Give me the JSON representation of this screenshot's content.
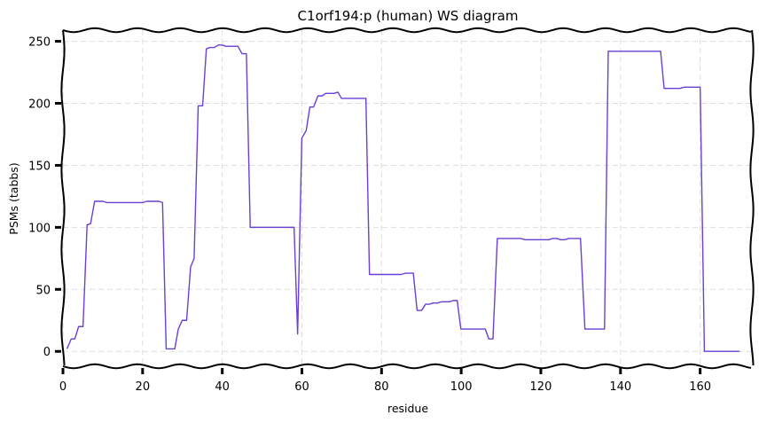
{
  "chart_data": {
    "type": "line",
    "title": "C1orf194:p (human) WS diagram",
    "xlabel": "residue",
    "ylabel": "PSMs (tabbs)",
    "xlim": [
      0,
      173
    ],
    "ylim": [
      -12,
      259
    ],
    "xticks": [
      0,
      20,
      40,
      60,
      80,
      100,
      120,
      140,
      160
    ],
    "yticks": [
      0,
      50,
      100,
      150,
      200,
      250
    ],
    "grid": true,
    "line_color": "#6a3fd6",
    "series": [
      {
        "x": [
          1,
          2,
          3,
          4,
          5,
          6,
          7,
          8,
          9,
          10,
          11,
          12,
          13,
          14,
          15,
          16,
          17,
          18,
          19,
          20,
          21,
          22,
          23,
          24,
          25,
          26,
          27,
          28,
          29,
          30,
          31,
          32,
          33,
          34,
          35,
          36,
          37,
          38,
          39,
          40,
          41,
          42,
          43,
          44,
          45,
          46,
          47,
          48,
          49,
          50,
          51,
          52,
          53,
          54,
          55,
          56,
          57,
          58,
          59,
          60,
          61,
          62,
          63,
          64,
          65,
          66,
          67,
          68,
          69,
          70,
          71,
          72,
          73,
          74,
          75,
          76,
          77,
          78,
          79,
          80,
          81,
          82,
          83,
          84,
          85,
          86,
          87,
          88,
          89,
          90,
          91,
          92,
          93,
          94,
          95,
          96,
          97,
          98,
          99,
          100,
          101,
          102,
          103,
          104,
          105,
          106,
          107,
          108,
          109,
          110,
          111,
          112,
          113,
          114,
          115,
          116,
          117,
          118,
          119,
          120,
          121,
          122,
          123,
          124,
          125,
          126,
          127,
          128,
          129,
          130,
          131,
          132,
          133,
          134,
          135,
          136,
          137,
          138,
          139,
          140,
          141,
          142,
          143,
          144,
          145,
          146,
          147,
          148,
          149,
          150,
          151,
          152,
          153,
          154,
          155,
          156,
          157,
          158,
          159,
          160,
          161,
          162,
          163,
          164,
          165,
          166,
          167,
          168,
          169,
          170
        ],
        "y": [
          2,
          10,
          10,
          20,
          20,
          102,
          103,
          121,
          121,
          121,
          120,
          120,
          120,
          120,
          120,
          120,
          120,
          120,
          120,
          120,
          121,
          121,
          121,
          121,
          120,
          2,
          2,
          2,
          18,
          25,
          25,
          68,
          75,
          198,
          198,
          244,
          245,
          245,
          247,
          247,
          246,
          246,
          246,
          246,
          240,
          240,
          100,
          100,
          100,
          100,
          100,
          100,
          100,
          100,
          100,
          100,
          100,
          100,
          14,
          172,
          178,
          197,
          197,
          206,
          206,
          208,
          208,
          208,
          209,
          204,
          204,
          204,
          204,
          204,
          204,
          204,
          62,
          62,
          62,
          62,
          62,
          62,
          62,
          62,
          62,
          63,
          63,
          63,
          33,
          33,
          38,
          38,
          39,
          39,
          40,
          40,
          40,
          41,
          41,
          18,
          18,
          18,
          18,
          18,
          18,
          18,
          10,
          10,
          91,
          91,
          91,
          91,
          91,
          91,
          91,
          90,
          90,
          90,
          90,
          90,
          90,
          90,
          91,
          91,
          90,
          90,
          91,
          91,
          91,
          91,
          18,
          18,
          18,
          18,
          18,
          18,
          242,
          242,
          242,
          242,
          242,
          242,
          242,
          242,
          242,
          242,
          242,
          242,
          242,
          242,
          212,
          212,
          212,
          212,
          212,
          213,
          213,
          213,
          213,
          213,
          0,
          0,
          0,
          0,
          0,
          0,
          0,
          0,
          0,
          0
        ]
      }
    ]
  }
}
